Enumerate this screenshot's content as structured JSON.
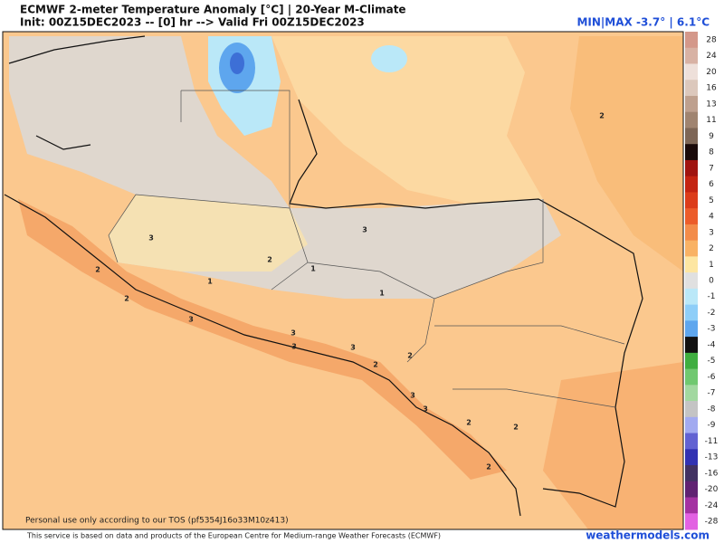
{
  "header": {
    "title": "ECMWF 2-meter Temperature Anomaly [°C] | 20-Year M-Climate",
    "subtitle": "Init: 00Z15DEC2023 -- [0] hr --> Valid Fri 00Z15DEC2023",
    "minmax": "MIN|MAX -3.7° | 6.1°C"
  },
  "map": {
    "note": "Personal use only according to our TOS (pf5354J16o33M10z413)",
    "contour_labels": [
      2,
      3,
      2,
      3,
      2,
      1,
      1,
      2,
      1,
      3,
      3,
      3,
      3,
      2,
      2,
      3,
      3,
      2,
      2,
      2
    ]
  },
  "colorbar": [
    {
      "label": 28,
      "color": "#d4988a"
    },
    {
      "label": 24,
      "color": "#d8b2a4"
    },
    {
      "label": 20,
      "color": "#eee0da"
    },
    {
      "label": 16,
      "color": "#dcc8bc"
    },
    {
      "label": 13,
      "color": "#bea08e"
    },
    {
      "label": 11,
      "color": "#a08470"
    },
    {
      "label": 9,
      "color": "#7e6656"
    },
    {
      "label": 8,
      "color": "#1a0a0a"
    },
    {
      "label": 7,
      "color": "#a01410"
    },
    {
      "label": 6,
      "color": "#c42412"
    },
    {
      "label": 5,
      "color": "#dc3c1a"
    },
    {
      "label": 4,
      "color": "#ec5c2a"
    },
    {
      "label": 3,
      "color": "#f38c4a"
    },
    {
      "label": 2,
      "color": "#f9b264"
    },
    {
      "label": 1,
      "color": "#fde6a2"
    },
    {
      "label": 0,
      "color": "#e0e0e0"
    },
    {
      "label": -1,
      "color": "#bae8f8"
    },
    {
      "label": -2,
      "color": "#8ecef8"
    },
    {
      "label": -3,
      "color": "#5ea6ee"
    },
    {
      "label": -4,
      "color": "#111111"
    },
    {
      "label": -5,
      "color": "#3fae40"
    },
    {
      "label": -6,
      "color": "#70c870"
    },
    {
      "label": -7,
      "color": "#a2d8a0"
    },
    {
      "label": -8,
      "color": "#c4c4c4"
    },
    {
      "label": -9,
      "color": "#a2aaf0"
    },
    {
      "label": -11,
      "color": "#6262d2"
    },
    {
      "label": -13,
      "color": "#3232b2"
    },
    {
      "label": -16,
      "color": "#423262"
    },
    {
      "label": -20,
      "color": "#602272"
    },
    {
      "label": -24,
      "color": "#a432a2"
    },
    {
      "label": -28,
      "color": "#e262e2"
    }
  ],
  "footer": {
    "credit": "This service is based on data and products of the European Centre for Medium-range Weather Forecasts (ECMWF)",
    "site": "weathermodels.com"
  }
}
